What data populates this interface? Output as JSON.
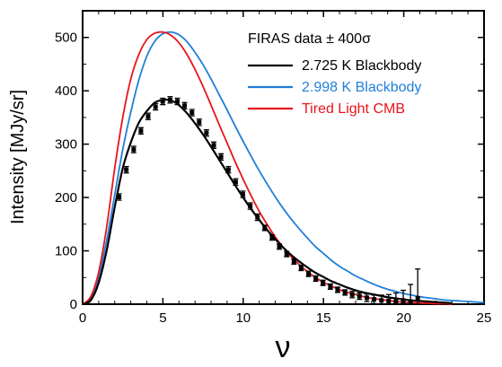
{
  "chart_data": {
    "type": "line",
    "title": "",
    "xlabel": "ν",
    "ylabel": "Intensity [MJy/sr]",
    "xlim": [
      0,
      25
    ],
    "ylim": [
      0,
      550
    ],
    "xticks": [
      0,
      5,
      10,
      15,
      20,
      25
    ],
    "yticks": [
      0,
      100,
      200,
      300,
      400,
      500
    ],
    "grid": false,
    "legend_position": "top-right",
    "legend_header": "FIRAS data ± 400σ",
    "series": [
      {
        "name": "2.725 K Blackbody",
        "color": "#000000",
        "x": [
          0,
          0.5,
          1,
          1.5,
          2,
          2.5,
          3,
          3.5,
          4,
          4.5,
          5,
          5.5,
          6,
          6.5,
          7,
          7.5,
          8,
          8.5,
          9,
          9.5,
          10,
          10.5,
          11,
          11.5,
          12,
          12.5,
          13,
          13.5,
          14,
          14.5,
          15,
          15.5,
          16,
          16.5,
          17,
          17.5,
          18,
          18.5,
          19,
          19.5,
          20,
          20.5,
          21,
          21.5,
          22,
          22.5,
          23
        ],
        "y": [
          0,
          7,
          40,
          101,
          182,
          255,
          303,
          340,
          362,
          378,
          383,
          382,
          373,
          358,
          339,
          318,
          295,
          271,
          247,
          223,
          200,
          178,
          158,
          139,
          122,
          106,
          92,
          80,
          69,
          59,
          51,
          43,
          37,
          31,
          26,
          22,
          19,
          16,
          13,
          11,
          9,
          7,
          6,
          5,
          4,
          3,
          2
        ]
      },
      {
        "name": "2.998 K Blackbody",
        "color": "#1f7fd9",
        "x": [
          0,
          0.5,
          1,
          1.5,
          2,
          2.5,
          3,
          3.5,
          4,
          4.5,
          5,
          5.5,
          6,
          6.5,
          7,
          7.5,
          8,
          8.5,
          9,
          9.5,
          10,
          10.5,
          11,
          11.5,
          12,
          12.5,
          13,
          13.5,
          14,
          14.5,
          15,
          15.5,
          16,
          16.5,
          17,
          17.5,
          18,
          18.5,
          19,
          19.5,
          20,
          20.5,
          21,
          21.5,
          22,
          22.5,
          23,
          23.5,
          24,
          24.5,
          25
        ],
        "y": [
          0,
          10,
          50,
          120,
          205,
          290,
          360,
          420,
          465,
          493,
          507,
          510,
          505,
          492,
          472,
          449,
          422,
          393,
          364,
          334,
          305,
          277,
          250,
          225,
          201,
          179,
          159,
          141,
          124,
          108,
          95,
          82,
          71,
          62,
          53,
          46,
          39,
          33,
          28,
          24,
          20,
          17,
          14,
          12,
          10,
          8,
          7,
          6,
          5,
          4,
          3
        ]
      },
      {
        "name": "Tired Light CMB",
        "color": "#e8141c",
        "x": [
          0,
          0.5,
          1,
          1.5,
          2,
          2.5,
          3,
          3.5,
          4,
          4.5,
          5,
          5.5,
          6,
          6.5,
          7,
          7.5,
          8,
          8.5,
          9,
          9.5,
          10,
          10.5,
          11,
          11.5,
          12,
          12.5,
          13,
          13.5,
          14,
          14.5,
          15,
          15.5,
          16,
          16.5,
          17,
          17.5,
          18,
          18.5,
          19,
          19.5,
          20,
          20.5,
          21,
          21.5,
          22,
          22.5,
          23
        ],
        "y": [
          0,
          14,
          60,
          145,
          255,
          350,
          422,
          468,
          496,
          508,
          510,
          504,
          490,
          468,
          440,
          408,
          373,
          337,
          302,
          267,
          234,
          203,
          174,
          149,
          126,
          106,
          89,
          74,
          61,
          50,
          41,
          34,
          27,
          22,
          18,
          14,
          11,
          9,
          7,
          5,
          4,
          3,
          2,
          2,
          1,
          1,
          0
        ]
      }
    ],
    "data_points": {
      "name": "FIRAS data",
      "x": [
        2.27,
        2.72,
        3.18,
        3.63,
        4.08,
        4.54,
        4.99,
        5.45,
        5.9,
        6.35,
        6.81,
        7.26,
        7.71,
        8.17,
        8.62,
        9.08,
        9.53,
        9.98,
        10.44,
        10.89,
        11.34,
        11.8,
        12.25,
        12.71,
        13.16,
        13.61,
        14.07,
        14.52,
        14.97,
        15.43,
        15.88,
        16.34,
        16.79,
        17.24,
        17.7,
        18.15,
        18.61,
        19.06,
        19.51,
        19.97,
        20.42,
        20.87
      ],
      "y": [
        201,
        252,
        290,
        325,
        352,
        370,
        380,
        383,
        380,
        372,
        359,
        341,
        321,
        298,
        276,
        252,
        229,
        206,
        184,
        163,
        143,
        125,
        108,
        94,
        80,
        68,
        57,
        48,
        40,
        33,
        27,
        22,
        18,
        15,
        12,
        9,
        7,
        6,
        5,
        4,
        5,
        11
      ],
      "err": [
        6,
        6,
        6,
        6,
        6,
        6,
        6,
        6,
        6,
        6,
        6,
        6,
        6,
        6,
        6,
        6,
        6,
        6,
        6,
        6,
        5,
        5,
        5,
        5,
        5,
        5,
        5,
        5,
        5,
        5,
        5,
        5,
        6,
        6,
        7,
        8,
        10,
        12,
        16,
        22,
        32,
        55
      ]
    }
  }
}
